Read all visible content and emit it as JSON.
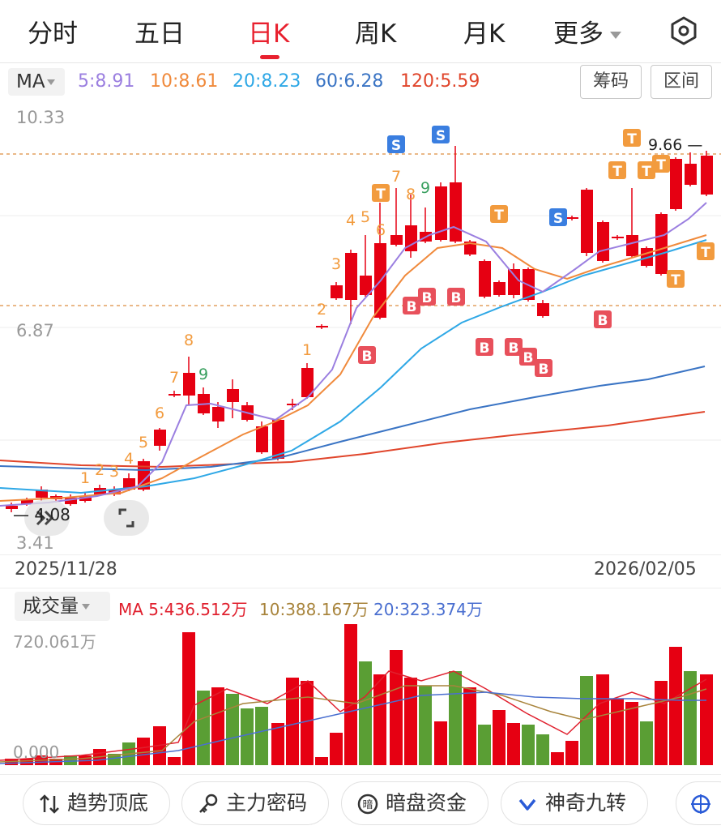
{
  "tabs": [
    {
      "label": "分时",
      "active": false
    },
    {
      "label": "五日",
      "active": false
    },
    {
      "label": "日K",
      "active": true
    },
    {
      "label": "周K",
      "active": false
    },
    {
      "label": "月K",
      "active": false
    },
    {
      "label": "更多",
      "active": false
    }
  ],
  "ma_bar": {
    "selector": "MA",
    "values": [
      {
        "label": "5:8.91",
        "color": "#9b7fe0"
      },
      {
        "label": "10:8.61",
        "color": "#f08a3c"
      },
      {
        "label": "20:8.23",
        "color": "#2fa8e6"
      },
      {
        "label": "60:6.28",
        "color": "#3a74c4"
      },
      {
        "label": "120:5.59",
        "color": "#e0452b"
      }
    ],
    "chip_button": "筹码",
    "range_button": "区间"
  },
  "price_axis": {
    "top": "10.33",
    "mid": "6.87",
    "bottom": "3.41"
  },
  "annotations": {
    "high": "9.66",
    "low": "4.08"
  },
  "dates": {
    "start": "2025/11/28",
    "end": "2026/02/05"
  },
  "volume": {
    "selector": "成交量",
    "ma_values": [
      {
        "label": "MA 5:436.512万",
        "color": "#e0202e"
      },
      {
        "label": "10:388.167万",
        "color": "#a8843c"
      },
      {
        "label": "20:323.374万",
        "color": "#4a6fd0"
      }
    ],
    "top_label": "720.061万",
    "bottom_label": "0.000"
  },
  "tools": [
    {
      "label": "趋势顶底",
      "icon": "trend-arrows-icon"
    },
    {
      "label": "主力密码",
      "icon": "key-icon"
    },
    {
      "label": "暗盘资金",
      "icon": "dark-pool-icon"
    },
    {
      "label": "神奇九转",
      "icon": "chevron-v-icon"
    }
  ],
  "colors": {
    "up": "#e60012",
    "down": "#5a9e34",
    "accent": "#e8202e",
    "sell": "#3a7ee0",
    "buy": "#e8505b",
    "top": "#f29b3e"
  }
}
